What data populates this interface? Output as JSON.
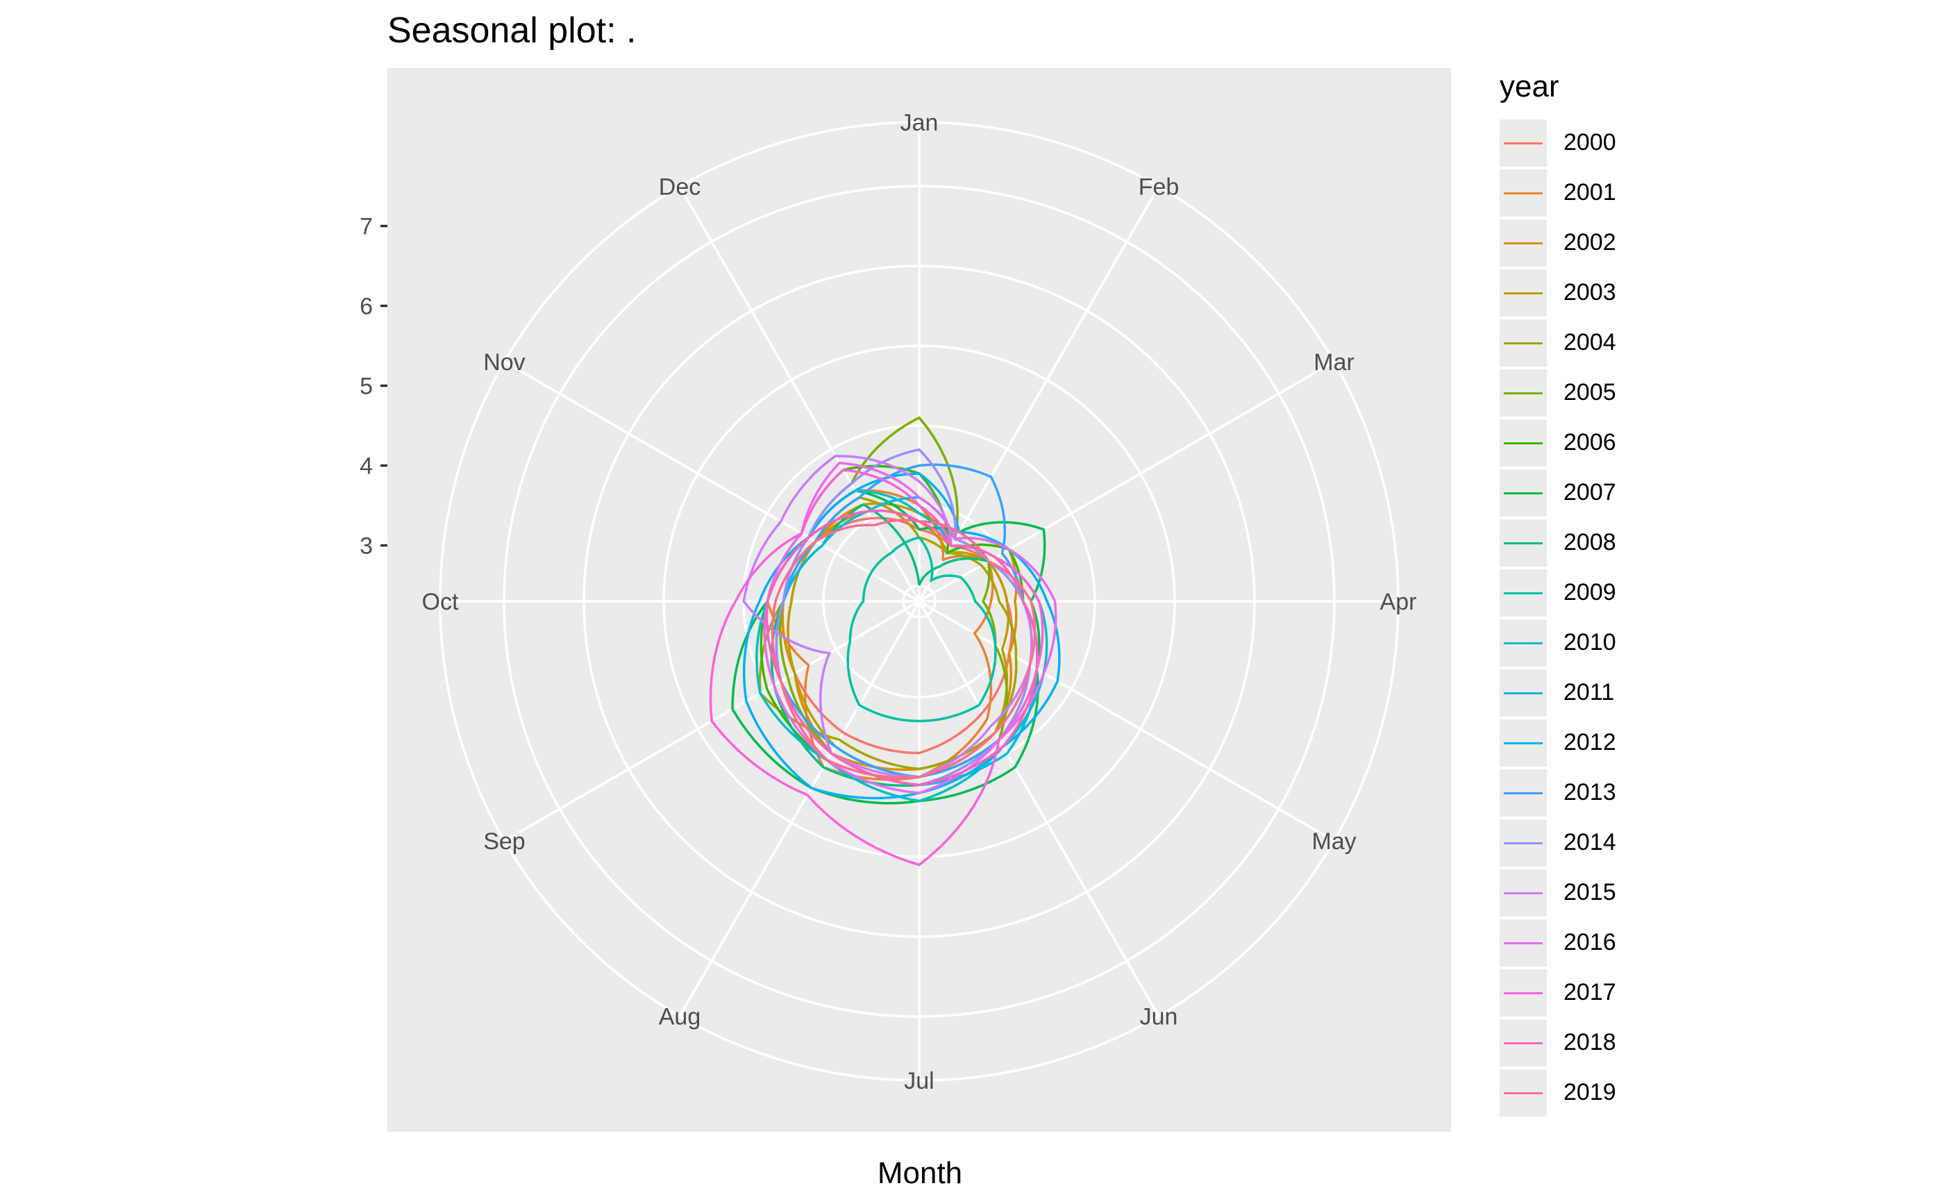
{
  "chart_data": {
    "type": "line",
    "coordinate_system": "polar",
    "title": "Seasonal plot: .",
    "xlabel": "Month",
    "ylabel": "",
    "categories": [
      "Jan",
      "Feb",
      "Mar",
      "Apr",
      "May",
      "Jun",
      "Jul",
      "Aug",
      "Sep",
      "Oct",
      "Nov",
      "Dec"
    ],
    "radial_ticks": [
      "3",
      "4",
      "5",
      "6",
      "7"
    ],
    "ylim": [
      2.3,
      8.3
    ],
    "grid": true,
    "legend_title": "year",
    "legend_position": "right",
    "series": [
      {
        "name": "2000",
        "color": "#F8766D",
        "values": [
          3.2,
          3.1,
          3.3,
          3.4,
          3.6,
          3.9,
          4.2,
          4.2,
          4.1,
          3.9,
          3.8,
          3.5
        ]
      },
      {
        "name": "2001",
        "color": "#EA8331",
        "values": [
          3.5,
          2.9,
          3.3,
          3.2,
          3.1,
          4.0,
          4.5,
          4.7,
          3.9,
          4.2,
          3.9,
          3.9
        ]
      },
      {
        "name": "2002",
        "color": "#D89000",
        "values": [
          3.4,
          3.2,
          3.6,
          3.5,
          3.6,
          4.2,
          4.4,
          4.5,
          4.1,
          4.0,
          3.8,
          3.7
        ]
      },
      {
        "name": "2003",
        "color": "#C09B00",
        "values": [
          3.3,
          3.0,
          3.3,
          3.4,
          3.5,
          4.2,
          4.5,
          4.4,
          4.1,
          3.9,
          3.8,
          3.6
        ]
      },
      {
        "name": "2004",
        "color": "#A3A500",
        "values": [
          3.1,
          3.0,
          3.2,
          3.3,
          3.7,
          4.2,
          4.4,
          4.3,
          4.6,
          4.0,
          3.8,
          3.8
        ]
      },
      {
        "name": "2005",
        "color": "#7CAE00",
        "values": [
          4.6,
          3.2,
          3.3,
          3.1,
          3.4,
          4.3,
          4.6,
          4.5,
          4.2,
          4.0,
          3.9,
          4.0
        ]
      },
      {
        "name": "2006",
        "color": "#39B600",
        "values": [
          3.9,
          3.0,
          3.6,
          3.6,
          4.0,
          4.3,
          4.5,
          4.6,
          4.5,
          4.2,
          4.0,
          4.2
        ]
      },
      {
        "name": "2007",
        "color": "#00BB4E",
        "values": [
          3.2,
          3.3,
          4.1,
          3.7,
          4.0,
          4.7,
          4.8,
          5.0,
          5.0,
          4.2,
          3.9,
          3.9
        ]
      },
      {
        "name": "2008",
        "color": "#00BF7D",
        "values": [
          2.5,
          2.8,
          3.3,
          3.6,
          4.0,
          4.5,
          4.6,
          4.7,
          4.4,
          4.0,
          3.7,
          3.7
        ]
      },
      {
        "name": "2009",
        "color": "#00C1A3",
        "values": [
          3.1,
          2.6,
          2.9,
          3.0,
          3.4,
          3.8,
          3.8,
          3.8,
          3.3,
          3.0,
          3.0,
          3.0
        ]
      },
      {
        "name": "2010",
        "color": "#00BFC4",
        "values": [
          3.4,
          3.1,
          3.4,
          3.8,
          4.1,
          4.4,
          4.8,
          4.6,
          4.6,
          4.2,
          3.9,
          3.9
        ]
      },
      {
        "name": "2011",
        "color": "#00BAE0",
        "values": [
          3.6,
          3.2,
          3.3,
          3.6,
          4.0,
          4.5,
          4.6,
          4.5,
          4.3,
          4.0,
          3.7,
          3.6
        ]
      },
      {
        "name": "2012",
        "color": "#00B0F6",
        "values": [
          3.9,
          3.3,
          3.6,
          3.9,
          4.3,
          4.4,
          4.7,
          5.0,
          4.8,
          4.3,
          3.9,
          3.9
        ]
      },
      {
        "name": "2013",
        "color": "#35A2FF",
        "values": [
          4.0,
          4.1,
          3.5,
          3.6,
          3.9,
          4.3,
          4.5,
          4.4,
          4.3,
          4.0,
          3.8,
          3.8
        ]
      },
      {
        "name": "2014",
        "color": "#9590FF",
        "values": [
          4.2,
          3.2,
          3.3,
          3.6,
          3.9,
          4.3,
          4.6,
          4.5,
          4.3,
          4.0,
          3.9,
          4.0
        ]
      },
      {
        "name": "2015",
        "color": "#C77CFF",
        "values": [
          3.8,
          3.1,
          3.4,
          3.6,
          3.9,
          4.1,
          4.5,
          4.5,
          3.6,
          4.5,
          4.3,
          4.4
        ]
      },
      {
        "name": "2016",
        "color": "#E76BF3",
        "values": [
          3.6,
          3.2,
          3.6,
          4.0,
          4.1,
          4.3,
          4.7,
          4.6,
          4.4,
          4.2,
          4.0,
          4.3
        ]
      },
      {
        "name": "2017",
        "color": "#FA62DB",
        "values": [
          3.5,
          3.1,
          3.4,
          3.8,
          4.0,
          4.3,
          5.6,
          5.1,
          5.3,
          4.6,
          4.0,
          4.2
        ]
      },
      {
        "name": "2018",
        "color": "#FF62BC",
        "values": [
          3.3,
          3.1,
          3.4,
          3.6,
          4.0,
          4.4,
          4.6,
          4.5,
          4.3,
          4.2,
          3.9,
          3.6
        ]
      },
      {
        "name": "2019",
        "color": "#FF6C91",
        "values": [
          3.3,
          3.3,
          3.3,
          3.7,
          3.9,
          4.2,
          4.5,
          4.6,
          4.3,
          4.1,
          3.8,
          3.4
        ]
      }
    ]
  }
}
